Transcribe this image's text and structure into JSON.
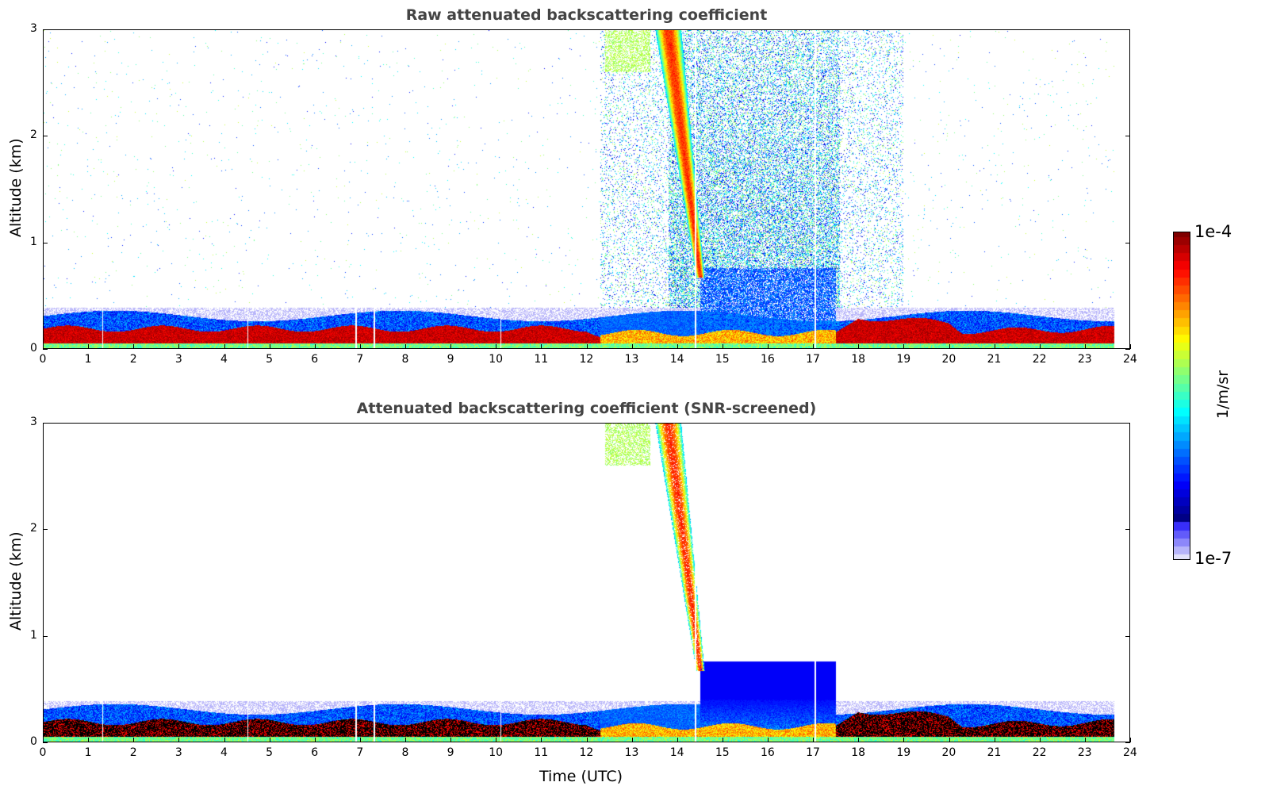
{
  "chart_data": [
    {
      "type": "heatmap",
      "title": "Raw attenuated backscattering coefficient",
      "xlabel": "",
      "ylabel": "Altitude (km)",
      "xlim": [
        0,
        24
      ],
      "ylim": [
        0,
        3
      ],
      "xticks": [
        "0",
        "1",
        "2",
        "3",
        "4",
        "5",
        "6",
        "7",
        "8",
        "9",
        "10",
        "11",
        "12",
        "13",
        "14",
        "15",
        "16",
        "17",
        "18",
        "19",
        "20",
        "21",
        "22",
        "23",
        "24"
      ],
      "yticks": [
        "0",
        "1",
        "2",
        "3"
      ],
      "screened": false
    },
    {
      "type": "heatmap",
      "title": "Attenuated backscattering coefficient (SNR-screened)",
      "xlabel": "Time (UTC)",
      "ylabel": "Altitude (km)",
      "xlim": [
        0,
        24
      ],
      "ylim": [
        0,
        3
      ],
      "xticks": [
        "0",
        "1",
        "2",
        "3",
        "4",
        "5",
        "6",
        "7",
        "8",
        "9",
        "10",
        "11",
        "12",
        "13",
        "14",
        "15",
        "16",
        "17",
        "18",
        "19",
        "20",
        "21",
        "22",
        "23",
        "24"
      ],
      "yticks": [
        "0",
        "1",
        "2",
        "3"
      ],
      "screened": true
    }
  ],
  "features": {
    "data_end_hour": 23.65,
    "aerosol_layer_top_km": {
      "hours": [
        0,
        12,
        12.3,
        17.5,
        18,
        19,
        20,
        20.3,
        21,
        23.65
      ],
      "tops": [
        0.22,
        0.22,
        0.16,
        0.16,
        0.33,
        0.3,
        0.28,
        0.2,
        0.2,
        0.22
      ]
    },
    "boundary_layer_top_km": 0.3,
    "fall_streak": {
      "top_hour": 13.75,
      "top_km": 3.0,
      "bottom_hour": 14.45,
      "bottom_km": 0.7,
      "log_value": -4.3
    },
    "noise_region_hours": [
      12.3,
      19.0
    ],
    "dense_low_region": {
      "hours": [
        14.5,
        17.5
      ],
      "top_km": 0.75
    },
    "data_gaps_hours": [
      1.3,
      4.5,
      6.9,
      7.3,
      10.1,
      14.4,
      17.05
    ]
  },
  "colorbar": {
    "label": "1/m/sr",
    "min_label": "1e-7",
    "max_label": "1e-4",
    "log_min": -7,
    "log_max": -4
  }
}
